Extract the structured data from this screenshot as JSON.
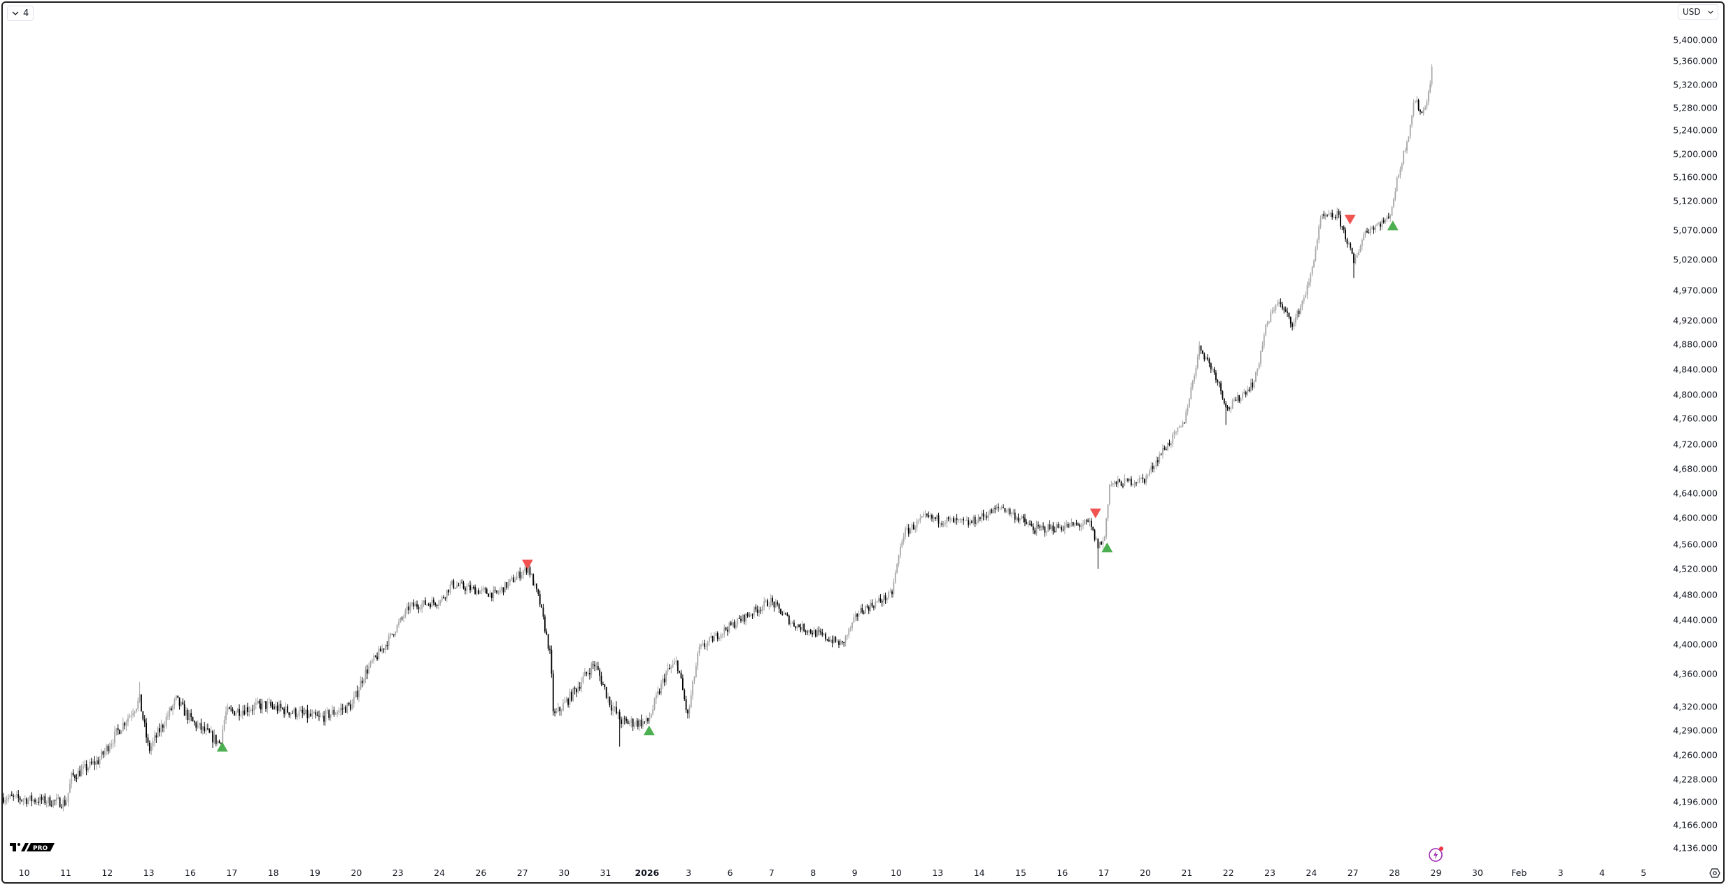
{
  "toolbar": {
    "interval_label": "4",
    "currency_label": "USD"
  },
  "logo": {
    "text": "TV PRO"
  },
  "price_axis": {
    "labels": [
      "5,400.000",
      "5,360.000",
      "5,320.000",
      "5,280.000",
      "5,240.000",
      "5,200.000",
      "5,160.000",
      "5,120.000",
      "5,070.000",
      "5,020.000",
      "4,970.000",
      "4,920.000",
      "4,880.000",
      "4,840.000",
      "4,800.000",
      "4,760.000",
      "4,720.000",
      "4,680.000",
      "4,640.000",
      "4,600.000",
      "4,560.000",
      "4,520.000",
      "4,480.000",
      "4,440.000",
      "4,400.000",
      "4,360.000",
      "4,320.000",
      "4,290.000",
      "4,260.000",
      "4,228.000",
      "4,196.000",
      "4,166.000",
      "4,136.000"
    ],
    "values": [
      5400,
      5360,
      5320,
      5280,
      5240,
      5200,
      5160,
      5120,
      5070,
      5020,
      4970,
      4920,
      4880,
      4840,
      4800,
      4760,
      4720,
      4680,
      4640,
      4600,
      4560,
      4520,
      4480,
      4440,
      4400,
      4360,
      4320,
      4290,
      4260,
      4228,
      4196,
      4166,
      4136
    ]
  },
  "time_axis": {
    "labels": [
      "10",
      "11",
      "12",
      "13",
      "16",
      "17",
      "18",
      "19",
      "20",
      "23",
      "24",
      "26",
      "27",
      "30",
      "31",
      "2026",
      "3",
      "6",
      "7",
      "8",
      "9",
      "10",
      "13",
      "14",
      "15",
      "16",
      "17",
      "20",
      "21",
      "22",
      "23",
      "24",
      "27",
      "28",
      "29",
      "30",
      "Feb",
      "3",
      "4",
      "5"
    ],
    "bold": [
      "2026"
    ]
  },
  "chart_data": {
    "type": "candlestick",
    "currency": "USD",
    "x_unit": "session index (0 = first time-axis label)",
    "ylim": [
      4120,
      5410
    ],
    "price_path": [
      [
        -0.45,
        4202
      ],
      [
        1.01,
        4195
      ],
      [
        1.14,
        4231
      ],
      [
        1.8,
        4253
      ],
      [
        2.07,
        4275
      ],
      [
        2.78,
        4328
      ],
      [
        3.0,
        4265
      ],
      [
        3.66,
        4328
      ],
      [
        4.06,
        4300
      ],
      [
        4.72,
        4274
      ],
      [
        4.85,
        4312
      ],
      [
        5.78,
        4322
      ],
      [
        7.1,
        4305
      ],
      [
        7.9,
        4322
      ],
      [
        8.17,
        4358
      ],
      [
        8.7,
        4400
      ],
      [
        9.28,
        4461
      ],
      [
        10.02,
        4470
      ],
      [
        10.29,
        4496
      ],
      [
        11.35,
        4480
      ],
      [
        12.01,
        4516
      ],
      [
        12.14,
        4522
      ],
      [
        12.41,
        4470
      ],
      [
        12.67,
        4383
      ],
      [
        12.75,
        4307
      ],
      [
        13.2,
        4335
      ],
      [
        13.73,
        4374
      ],
      [
        14.13,
        4322
      ],
      [
        14.4,
        4300
      ],
      [
        15.01,
        4300
      ],
      [
        15.46,
        4361
      ],
      [
        15.72,
        4376
      ],
      [
        15.98,
        4307
      ],
      [
        16.25,
        4392
      ],
      [
        16.91,
        4426
      ],
      [
        17.97,
        4470
      ],
      [
        18.5,
        4434
      ],
      [
        19.7,
        4400
      ],
      [
        20.1,
        4453
      ],
      [
        20.89,
        4480
      ],
      [
        21.16,
        4575
      ],
      [
        21.69,
        4600
      ],
      [
        22.75,
        4591
      ],
      [
        23.54,
        4618
      ],
      [
        24.34,
        4582
      ],
      [
        25.66,
        4591
      ],
      [
        25.85,
        4558
      ],
      [
        26.01,
        4565
      ],
      [
        26.14,
        4654
      ],
      [
        26.99,
        4663
      ],
      [
        27.39,
        4707
      ],
      [
        27.92,
        4751
      ],
      [
        28.31,
        4876
      ],
      [
        28.71,
        4829
      ],
      [
        28.98,
        4775
      ],
      [
        29.64,
        4822
      ],
      [
        29.9,
        4907
      ],
      [
        30.17,
        4953
      ],
      [
        30.57,
        4913
      ],
      [
        30.96,
        4985
      ],
      [
        31.23,
        5090
      ],
      [
        31.63,
        5096
      ],
      [
        31.92,
        5040
      ],
      [
        32.02,
        5013
      ],
      [
        32.29,
        5068
      ],
      [
        32.87,
        5090
      ],
      [
        33.09,
        5162
      ],
      [
        33.35,
        5238
      ],
      [
        33.48,
        5296
      ],
      [
        33.67,
        5268
      ],
      [
        33.88,
        5322
      ],
      [
        33.93,
        5388
      ]
    ],
    "spikes": [
      [
        2.8,
        4350,
        "high"
      ],
      [
        14.35,
        4270,
        "low"
      ],
      [
        25.85,
        4520,
        "low"
      ],
      [
        28.3,
        4885,
        "high"
      ],
      [
        28.95,
        4750,
        "low"
      ],
      [
        32.0,
        4990,
        "low"
      ],
      [
        33.93,
        5395,
        "high"
      ]
    ],
    "signals": [
      {
        "t": 4.77,
        "price": 4270,
        "type": "buy"
      },
      {
        "t": 12.12,
        "price": 4527,
        "type": "sell"
      },
      {
        "t": 15.05,
        "price": 4290,
        "type": "buy"
      },
      {
        "t": 25.8,
        "price": 4607,
        "type": "sell"
      },
      {
        "t": 26.08,
        "price": 4555,
        "type": "buy"
      },
      {
        "t": 31.93,
        "price": 5088,
        "type": "sell"
      },
      {
        "t": 32.96,
        "price": 5078,
        "type": "buy"
      }
    ],
    "colors": {
      "up": "#a6a6a6",
      "down": "#000000",
      "buy": "#4caf50",
      "sell": "#f05350"
    }
  },
  "icons": {
    "interval": "chevron-down-icon",
    "currency": "chevron-down-icon",
    "alert": "lightning-icon",
    "settings": "settings-icon"
  }
}
